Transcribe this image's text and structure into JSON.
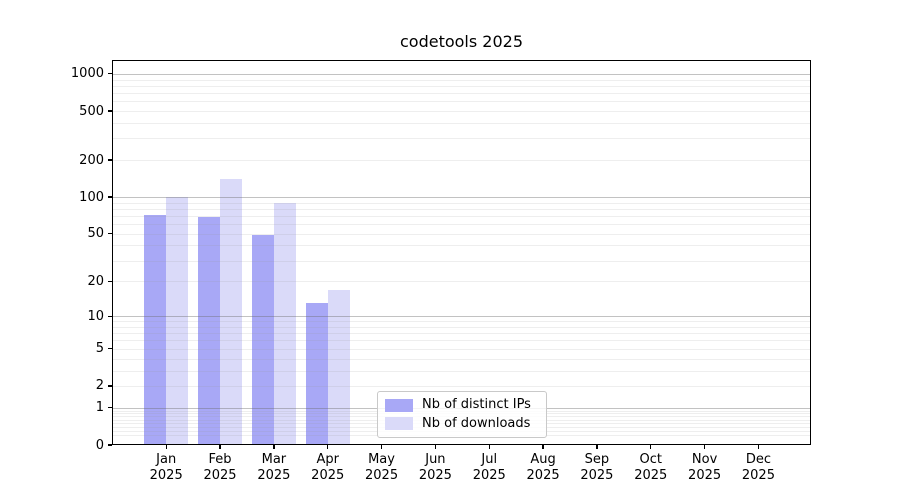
{
  "chart_data": {
    "type": "bar",
    "title": "codetools 2025",
    "months": [
      "Jan",
      "Feb",
      "Mar",
      "Apr",
      "May",
      "Jun",
      "Jul",
      "Aug",
      "Sep",
      "Oct",
      "Nov",
      "Dec"
    ],
    "year": "2025",
    "x_categories": [
      "Jan 2025",
      "Feb 2025",
      "Mar 2025",
      "Apr 2025",
      "May 2025",
      "Jun 2025",
      "Jul 2025",
      "Aug 2025",
      "Sep 2025",
      "Oct 2025",
      "Nov 2025",
      "Dec 2025"
    ],
    "series": [
      {
        "name": "Nb of distinct IPs",
        "color": "#a8a8f6",
        "values": [
          72,
          69,
          49,
          13,
          0,
          0,
          0,
          0,
          0,
          0,
          0,
          0
        ]
      },
      {
        "name": "Nb of downloads",
        "color": "#dadaf9",
        "values": [
          100,
          140,
          90,
          17,
          0,
          0,
          0,
          0,
          0,
          0,
          0,
          0
        ]
      }
    ],
    "y_ticks": [
      0,
      1,
      2,
      5,
      10,
      20,
      50,
      100,
      200,
      500,
      1000
    ],
    "y_scale": "log10(1+v)",
    "ylim": [
      0,
      1290
    ],
    "xlabel": "",
    "ylabel": "",
    "grid": "on",
    "legend_position": "lower center"
  },
  "colors": {
    "bar_distinct_ips": "#a8a8f6",
    "bar_downloads": "#dadaf9",
    "grid_major": "#b4b4b4",
    "grid_minor": "#ebebeb",
    "axis": "#000000",
    "legend_border": "#c9c9c9",
    "background": "#ffffff"
  }
}
